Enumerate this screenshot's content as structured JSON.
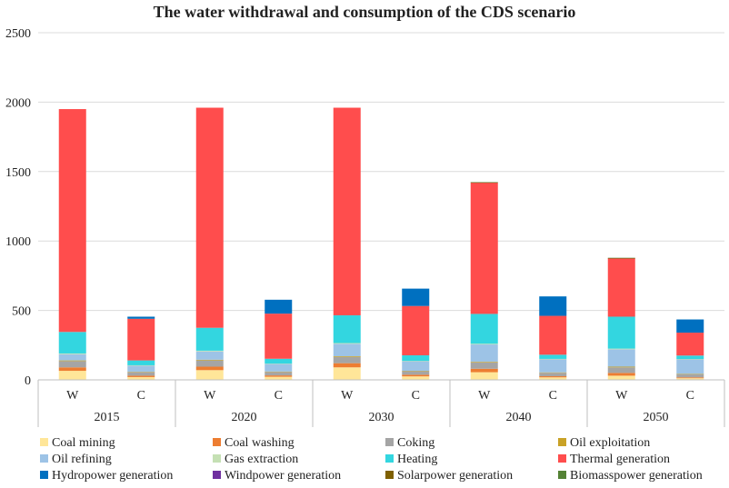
{
  "chart_data": {
    "type": "bar",
    "stacked": true,
    "title": "The water withdrawal and consumption of the CDS scenario",
    "xlabel": "",
    "ylabel": "",
    "ylim": [
      0,
      2500
    ],
    "yticks": [
      0,
      500,
      1000,
      1500,
      2000,
      2500
    ],
    "grid": true,
    "legend_position": "bottom",
    "groups": [
      "2015",
      "2020",
      "2030",
      "2040",
      "2050"
    ],
    "categories": [
      "W",
      "C",
      "W",
      "C",
      "W",
      "C",
      "W",
      "C",
      "W",
      "C"
    ],
    "series": [
      {
        "name": "Coal mining",
        "color": "#FFE699",
        "values": [
          65,
          20,
          70,
          22,
          90,
          25,
          55,
          18,
          30,
          12
        ]
      },
      {
        "name": "Coal washing",
        "color": "#ED7D31",
        "values": [
          25,
          10,
          25,
          10,
          30,
          12,
          25,
          8,
          20,
          6
        ]
      },
      {
        "name": "Coking",
        "color": "#A5A5A5",
        "values": [
          45,
          25,
          45,
          25,
          45,
          25,
          45,
          25,
          40,
          22
        ]
      },
      {
        "name": "Oil exploitation",
        "color": "#C9A227",
        "values": [
          5,
          3,
          5,
          3,
          5,
          3,
          5,
          3,
          5,
          3
        ]
      },
      {
        "name": "Oil refining",
        "color": "#9DC3E6",
        "values": [
          45,
          45,
          60,
          55,
          90,
          70,
          125,
          95,
          125,
          105
        ]
      },
      {
        "name": "Gas extraction",
        "color": "#C5E0B4",
        "values": [
          5,
          2,
          5,
          2,
          5,
          2,
          5,
          2,
          5,
          2
        ]
      },
      {
        "name": "Heating",
        "color": "#33D6E0",
        "values": [
          155,
          35,
          165,
          35,
          200,
          40,
          215,
          30,
          230,
          25
        ]
      },
      {
        "name": "Thermal generation",
        "color": "#FF4D4D",
        "values": [
          1605,
          300,
          1585,
          325,
          1495,
          355,
          945,
          280,
          420,
          165
        ]
      },
      {
        "name": "Hydropower generation",
        "color": "#0070C0",
        "values": [
          0,
          15,
          0,
          100,
          0,
          125,
          0,
          140,
          0,
          95
        ]
      },
      {
        "name": "Windpower generation",
        "color": "#7030A0",
        "values": [
          0,
          0,
          0,
          0,
          0,
          0,
          0,
          0,
          0,
          0
        ]
      },
      {
        "name": "Solarpower generation",
        "color": "#7F6000",
        "values": [
          0,
          0,
          0,
          0,
          0,
          0,
          2,
          0,
          2,
          0
        ]
      },
      {
        "name": "Biomasspower generation",
        "color": "#548235",
        "values": [
          0,
          0,
          0,
          0,
          0,
          0,
          2,
          0,
          2,
          0
        ]
      }
    ]
  }
}
